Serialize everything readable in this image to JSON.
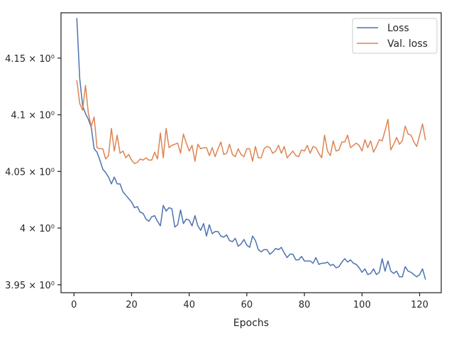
{
  "chart_data": {
    "type": "line",
    "xlabel": "Epochs",
    "ylabel": "",
    "title": "",
    "xlim": [
      -4.5,
      127.5
    ],
    "ylim": [
      3.943,
      4.19
    ],
    "xticks": [
      0,
      20,
      40,
      60,
      80,
      100,
      120
    ],
    "xtick_labels": [
      "0",
      "20",
      "40",
      "60",
      "80",
      "100",
      "120"
    ],
    "yticks": [
      3.95,
      4.0,
      4.05,
      4.1,
      4.15
    ],
    "ytick_labels": [
      "3.95 × 10⁰",
      "4 × 10⁰",
      "4.05 × 10⁰",
      "4.1 × 10⁰",
      "4.15 × 10⁰"
    ],
    "grid": false,
    "legend_position": "top-right",
    "series": [
      {
        "name": "Loss",
        "color": "#4c72b0",
        "x": [
          1,
          2,
          3,
          4,
          5,
          6,
          7,
          8,
          9,
          10,
          11,
          12,
          13,
          14,
          15,
          16,
          17,
          18,
          19,
          20,
          21,
          22,
          23,
          24,
          25,
          26,
          27,
          28,
          29,
          30,
          31,
          32,
          33,
          34,
          35,
          36,
          37,
          38,
          39,
          40,
          41,
          42,
          43,
          44,
          45,
          46,
          47,
          48,
          49,
          50,
          51,
          52,
          53,
          54,
          55,
          56,
          57,
          58,
          59,
          60,
          61,
          62,
          63,
          64,
          65,
          66,
          67,
          68,
          69,
          70,
          71,
          72,
          73,
          74,
          75,
          76,
          77,
          78,
          79,
          80,
          81,
          82,
          83,
          84,
          85,
          86,
          87,
          88,
          89,
          90,
          91,
          92,
          93,
          94,
          95,
          96,
          97,
          98,
          99,
          100,
          101,
          102,
          103,
          104,
          105,
          106,
          107,
          108,
          109,
          110,
          111,
          112,
          113,
          114,
          115,
          116,
          117,
          118,
          119,
          120,
          121,
          122
        ],
        "y": [
          4.185,
          4.132,
          4.108,
          4.101,
          4.096,
          4.089,
          4.07,
          4.067,
          4.06,
          4.052,
          4.049,
          4.045,
          4.039,
          4.045,
          4.039,
          4.039,
          4.032,
          4.029,
          4.026,
          4.023,
          4.018,
          4.019,
          4.014,
          4.013,
          4.008,
          4.006,
          4.01,
          4.011,
          4.006,
          4.002,
          4.02,
          4.015,
          4.018,
          4.017,
          4.001,
          4.003,
          4.016,
          4.004,
          4.008,
          4.007,
          4.002,
          4.011,
          4.002,
          3.998,
          4.004,
          3.993,
          4.003,
          3.995,
          3.997,
          3.997,
          3.993,
          3.992,
          3.994,
          3.989,
          3.988,
          3.991,
          3.984,
          3.986,
          3.99,
          3.985,
          3.983,
          3.993,
          3.989,
          3.981,
          3.979,
          3.981,
          3.981,
          3.977,
          3.979,
          3.982,
          3.981,
          3.983,
          3.978,
          3.974,
          3.977,
          3.977,
          3.972,
          3.972,
          3.975,
          3.971,
          3.971,
          3.971,
          3.969,
          3.974,
          3.968,
          3.969,
          3.969,
          3.97,
          3.967,
          3.968,
          3.965,
          3.966,
          3.97,
          3.973,
          3.97,
          3.972,
          3.969,
          3.968,
          3.965,
          3.961,
          3.964,
          3.959,
          3.96,
          3.964,
          3.959,
          3.961,
          3.973,
          3.962,
          3.971,
          3.962,
          3.96,
          3.962,
          3.957,
          3.957,
          3.966,
          3.962,
          3.961,
          3.959,
          3.957,
          3.959,
          3.964,
          3.955
        ]
      },
      {
        "name": "Val. loss",
        "color": "#dd8452",
        "x": [
          1,
          2,
          3,
          4,
          5,
          6,
          7,
          8,
          9,
          10,
          11,
          12,
          13,
          14,
          15,
          16,
          17,
          18,
          19,
          20,
          21,
          22,
          23,
          24,
          25,
          26,
          27,
          28,
          29,
          30,
          31,
          32,
          33,
          34,
          35,
          36,
          37,
          38,
          39,
          40,
          41,
          42,
          43,
          44,
          45,
          46,
          47,
          48,
          49,
          50,
          51,
          52,
          53,
          54,
          55,
          56,
          57,
          58,
          59,
          60,
          61,
          62,
          63,
          64,
          65,
          66,
          67,
          68,
          69,
          70,
          71,
          72,
          73,
          74,
          75,
          76,
          77,
          78,
          79,
          80,
          81,
          82,
          83,
          84,
          85,
          86,
          87,
          88,
          89,
          90,
          91,
          92,
          93,
          94,
          95,
          96,
          97,
          98,
          99,
          100,
          101,
          102,
          103,
          104,
          105,
          106,
          107,
          108,
          109,
          110,
          111,
          112,
          113,
          114,
          115,
          116,
          117,
          118,
          119,
          120,
          121,
          122
        ],
        "y": [
          4.13,
          4.11,
          4.104,
          4.126,
          4.101,
          4.09,
          4.098,
          4.071,
          4.07,
          4.07,
          4.061,
          4.064,
          4.088,
          4.068,
          4.082,
          4.066,
          4.068,
          4.062,
          4.065,
          4.06,
          4.057,
          4.058,
          4.061,
          4.06,
          4.062,
          4.06,
          4.06,
          4.067,
          4.061,
          4.084,
          4.062,
          4.088,
          4.071,
          4.073,
          4.074,
          4.075,
          4.066,
          4.083,
          4.075,
          4.068,
          4.073,
          4.059,
          4.074,
          4.07,
          4.071,
          4.071,
          4.064,
          4.071,
          4.063,
          4.07,
          4.076,
          4.065,
          4.066,
          4.074,
          4.065,
          4.063,
          4.07,
          4.065,
          4.063,
          4.07,
          4.07,
          4.059,
          4.072,
          4.062,
          4.062,
          4.07,
          4.072,
          4.071,
          4.066,
          4.068,
          4.073,
          4.066,
          4.072,
          4.062,
          4.065,
          4.068,
          4.064,
          4.063,
          4.069,
          4.068,
          4.073,
          4.066,
          4.072,
          4.071,
          4.066,
          4.062,
          4.082,
          4.068,
          4.064,
          4.077,
          4.068,
          4.069,
          4.076,
          4.076,
          4.082,
          4.071,
          4.073,
          4.075,
          4.073,
          4.068,
          4.078,
          4.071,
          4.077,
          4.067,
          4.072,
          4.078,
          4.077,
          4.086,
          4.096,
          4.069,
          4.074,
          4.08,
          4.074,
          4.077,
          4.09,
          4.083,
          4.082,
          4.076,
          4.072,
          4.082,
          4.092,
          4.078
        ]
      }
    ]
  }
}
